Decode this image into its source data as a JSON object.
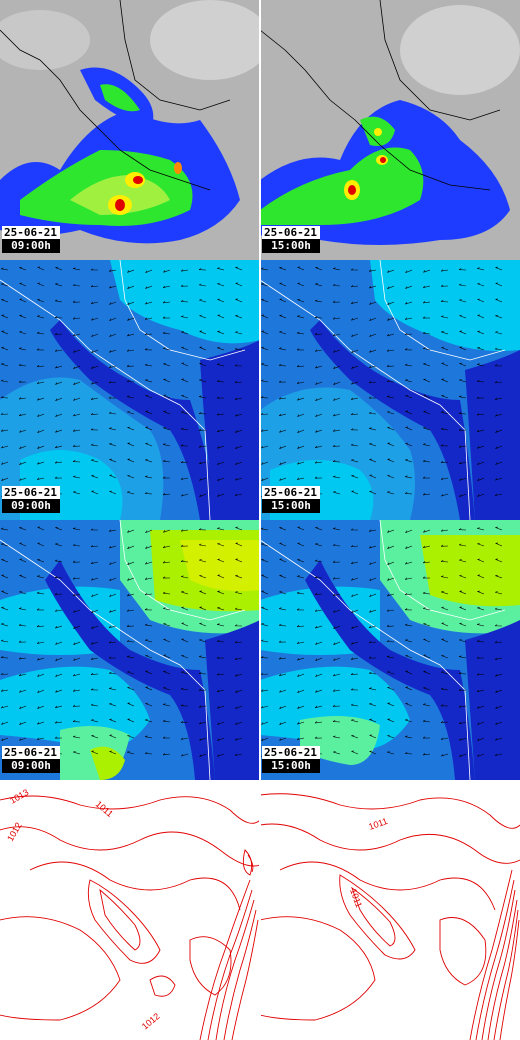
{
  "panels": [
    {
      "row": "precipitation",
      "date": "25-06-21",
      "time": "09:00h"
    },
    {
      "row": "precipitation",
      "date": "25-06-21",
      "time": "15:00h"
    },
    {
      "row": "wind-1",
      "date": "25-06-21",
      "time": "09:00h"
    },
    {
      "row": "wind-1",
      "date": "25-06-21",
      "time": "15:00h"
    },
    {
      "row": "wind-2",
      "date": "25-06-21",
      "time": "09:00h"
    },
    {
      "row": "wind-2",
      "date": "25-06-21",
      "time": "15:00h"
    },
    {
      "row": "pressure",
      "date": "",
      "time": ""
    },
    {
      "row": "pressure",
      "date": "",
      "time": ""
    }
  ],
  "isobars": {
    "left": [
      "1013",
      "1012",
      "1011",
      "1012"
    ],
    "right": [
      "1011",
      "1011"
    ]
  },
  "colors": {
    "precip_low": "#1e3cff",
    "precip_mid": "#2ee62e",
    "precip_high": "#ffee00",
    "precip_max": "#e00000",
    "wind_deep": "#1428c8",
    "wind_mid": "#00c8f0",
    "wind_high": "#aaf000",
    "isobar": "#e00000"
  }
}
